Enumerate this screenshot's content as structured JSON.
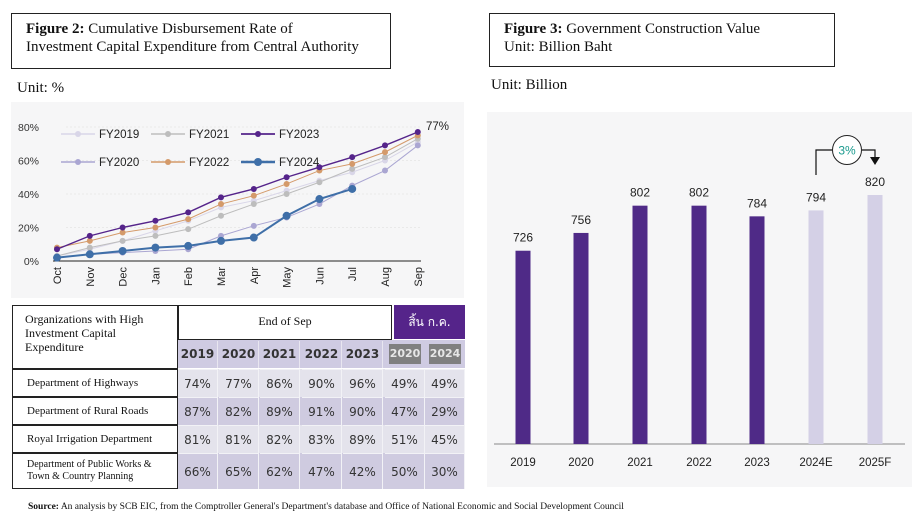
{
  "figure2": {
    "title_bold": "Figure 2:",
    "title_rest_line1": " Cumulative Disbursement Rate of",
    "title_line2": "Investment Capital Expenditure from Central Authority",
    "unit": "Unit: %"
  },
  "figure3": {
    "title_bold": "Figure 3:",
    "title_rest_line1": " Government Construction Value",
    "title_line2": "Unit: Billion Baht",
    "unit": "Unit: Billion"
  },
  "table": {
    "header_org": "Organizations with High Investment Capital Expenditure",
    "header_end_sep": "End of Sep",
    "header_thai": "สิ้น ก.ค.",
    "years_end_sep": [
      "2019",
      "2020",
      "2021",
      "2022",
      "2023"
    ],
    "years_jul": [
      "2020",
      "2024"
    ],
    "rows": [
      {
        "org": "Department of Highways",
        "values": [
          "74%",
          "77%",
          "86%",
          "90%",
          "96%",
          "49%",
          "49%"
        ]
      },
      {
        "org": "Department of Rural Roads",
        "values": [
          "87%",
          "82%",
          "89%",
          "91%",
          "90%",
          "47%",
          "29%"
        ]
      },
      {
        "org": "Royal Irrigation Department",
        "values": [
          "81%",
          "81%",
          "82%",
          "83%",
          "89%",
          "51%",
          "45%"
        ]
      },
      {
        "org": "Department of Public Works & Town & Country Planning",
        "values": [
          "66%",
          "65%",
          "62%",
          "47%",
          "42%",
          "50%",
          "30%"
        ]
      }
    ]
  },
  "source": {
    "label": "Source:",
    "text": " An analysis by SCB EIC, from the Comptroller General's Department's database and Office of National Economic and Social Development Council"
  },
  "colors": {
    "purple_dark": "#4f2a87",
    "purple_light": "#d4d0e6",
    "fy2019": "#d9d6e8",
    "fy2020": "#aaa6d2",
    "fy2021": "#bdbdbd",
    "fy2022": "#d49a6a",
    "fy2023": "#55248a",
    "fy2024": "#3f6fa8",
    "growth_teal": "#1a9a8e"
  },
  "chart_data": [
    {
      "type": "line",
      "title": "Cumulative Disbursement Rate of Investment Capital Expenditure from Central Authority",
      "xlabel": "",
      "ylabel": "%",
      "x": [
        "Oct",
        "Nov",
        "Dec",
        "Jan",
        "Feb",
        "Mar",
        "Apr",
        "May",
        "Jun",
        "Jul",
        "Aug",
        "Sep"
      ],
      "yticks": [
        "0%",
        "20%",
        "40%",
        "60%",
        "80%"
      ],
      "ylim": [
        0,
        80
      ],
      "grid": true,
      "legend": "top-left",
      "annotation": "77%",
      "series": [
        {
          "name": "FY2019",
          "values": [
            3,
            7,
            12,
            18,
            24,
            32,
            36,
            42,
            48,
            53,
            60,
            71
          ]
        },
        {
          "name": "FY2020",
          "values": [
            2,
            4,
            5,
            6,
            7,
            15,
            21,
            26,
            34,
            45,
            54,
            69
          ]
        },
        {
          "name": "FY2021",
          "values": [
            3,
            8,
            12,
            15,
            19,
            27,
            34,
            40,
            47,
            55,
            62,
            73
          ]
        },
        {
          "name": "FY2022",
          "values": [
            8,
            12,
            17,
            20,
            25,
            34,
            39,
            46,
            54,
            58,
            65,
            75
          ]
        },
        {
          "name": "FY2023",
          "values": [
            7,
            15,
            20,
            24,
            29,
            38,
            43,
            50,
            56,
            62,
            69,
            77
          ]
        },
        {
          "name": "FY2024",
          "values": [
            2,
            4,
            6,
            8,
            9,
            12,
            14,
            27,
            37,
            43,
            null,
            null
          ]
        }
      ]
    },
    {
      "type": "bar",
      "title": "Government Construction Value",
      "ylabel": "Billion Baht",
      "categories": [
        "2019",
        "2020",
        "2021",
        "2022",
        "2023",
        "2024E",
        "2025F"
      ],
      "values": [
        726,
        756,
        802,
        802,
        784,
        794,
        820
      ],
      "labels": [
        "726",
        "756",
        "802",
        "802",
        "784",
        "794",
        "820"
      ],
      "forecast": [
        false,
        false,
        false,
        false,
        false,
        true,
        true
      ],
      "annotation": {
        "text": "3%",
        "from": "2024E",
        "to": "2025F"
      }
    }
  ]
}
